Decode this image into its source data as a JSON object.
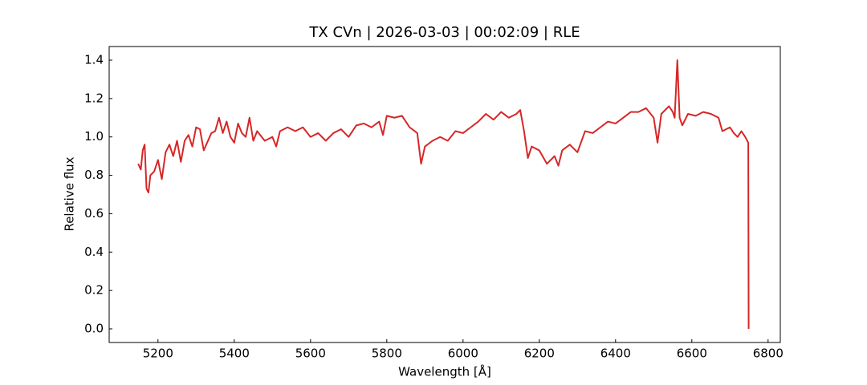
{
  "chart_data": {
    "type": "line",
    "title": "TX CVn | 2026-03-03 | 00:02:09 | RLE",
    "x_label": "Wavelength [Å]",
    "y_label": "Relative flux",
    "xlim": [
      5072,
      6832
    ],
    "ylim": [
      -0.071,
      1.471
    ],
    "xticks": [
      5200,
      5400,
      5600,
      5800,
      6000,
      6200,
      6400,
      6600,
      6800
    ],
    "yticks": [
      {
        "value": 0,
        "label": "0.0"
      },
      0.2,
      0.4,
      0.6,
      0.8,
      {
        "value": 1,
        "label": "1.0"
      },
      1.2,
      1.4
    ],
    "x": [
      5148,
      5155,
      5160,
      5165,
      5170,
      5175,
      5180,
      5190,
      5200,
      5210,
      5220,
      5230,
      5240,
      5250,
      5260,
      5270,
      5280,
      5290,
      5300,
      5310,
      5320,
      5340,
      5350,
      5360,
      5370,
      5380,
      5390,
      5400,
      5410,
      5420,
      5430,
      5440,
      5450,
      5460,
      5480,
      5500,
      5510,
      5520,
      5540,
      5560,
      5580,
      5600,
      5620,
      5640,
      5660,
      5680,
      5700,
      5720,
      5740,
      5760,
      5780,
      5790,
      5800,
      5820,
      5840,
      5860,
      5880,
      5890,
      5900,
      5920,
      5940,
      5960,
      5980,
      6000,
      6020,
      6040,
      6060,
      6080,
      6100,
      6120,
      6140,
      6150,
      6160,
      6170,
      6180,
      6200,
      6220,
      6240,
      6250,
      6260,
      6280,
      6300,
      6320,
      6340,
      6360,
      6380,
      6400,
      6420,
      6440,
      6460,
      6480,
      6500,
      6510,
      6520,
      6540,
      6550,
      6555,
      6562,
      6568,
      6575,
      6590,
      6610,
      6630,
      6650,
      6670,
      6680,
      6700,
      6710,
      6720,
      6730,
      6740,
      6748,
      6749
    ],
    "series": [
      {
        "name": "Relative flux",
        "color": "#d62728",
        "values": [
          0.86,
          0.83,
          0.93,
          0.96,
          0.73,
          0.71,
          0.8,
          0.82,
          0.88,
          0.78,
          0.92,
          0.96,
          0.9,
          0.98,
          0.87,
          0.98,
          1.01,
          0.95,
          1.05,
          1.04,
          0.93,
          1.02,
          1.03,
          1.1,
          1.02,
          1.08,
          1.0,
          0.97,
          1.07,
          1.02,
          1.0,
          1.1,
          0.98,
          1.03,
          0.98,
          1.0,
          0.95,
          1.03,
          1.05,
          1.03,
          1.05,
          1.0,
          1.02,
          0.98,
          1.02,
          1.04,
          1.0,
          1.06,
          1.07,
          1.05,
          1.08,
          1.01,
          1.11,
          1.1,
          1.11,
          1.05,
          1.02,
          0.86,
          0.95,
          0.98,
          1.0,
          0.98,
          1.03,
          1.02,
          1.05,
          1.08,
          1.12,
          1.09,
          1.13,
          1.1,
          1.12,
          1.14,
          1.03,
          0.89,
          0.95,
          0.93,
          0.86,
          0.9,
          0.85,
          0.93,
          0.96,
          0.92,
          1.03,
          1.02,
          1.05,
          1.08,
          1.07,
          1.1,
          1.13,
          1.13,
          1.15,
          1.1,
          0.97,
          1.12,
          1.16,
          1.13,
          1.1,
          1.4,
          1.1,
          1.06,
          1.12,
          1.11,
          1.13,
          1.12,
          1.1,
          1.03,
          1.05,
          1.02,
          1.0,
          1.03,
          1.0,
          0.97,
          0.0
        ]
      }
    ]
  }
}
